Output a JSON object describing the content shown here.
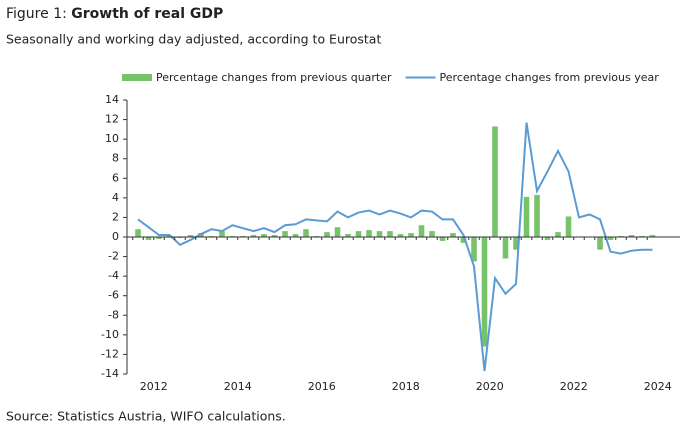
{
  "chart_data": {
    "type": "bar+line",
    "title_prefix": "Figure 1:",
    "title": "Growth of real GDP",
    "subtitle": "Seasonally and working day adjusted, according to Eurostat",
    "source": "Source: Statistics Austria, WIFO calculations.",
    "categories": [
      "2012",
      null,
      null,
      null,
      null,
      null,
      null,
      null,
      "2014",
      null,
      null,
      null,
      null,
      null,
      null,
      null,
      "2016",
      null,
      null,
      null,
      null,
      null,
      null,
      null,
      "2018",
      null,
      null,
      null,
      null,
      null,
      null,
      null,
      "2020",
      null,
      null,
      null,
      null,
      null,
      null,
      null,
      "2022",
      null,
      null,
      null,
      null,
      null,
      null,
      null,
      "2024",
      null
    ],
    "series": [
      {
        "name": "Percentage changes from previous quarter",
        "type": "bar",
        "color": "#77c36a",
        "values": [
          0.8,
          -0.3,
          -0.2,
          0.1,
          -0.1,
          0.2,
          0.4,
          0.1,
          0.6,
          0.1,
          0.1,
          0.2,
          0.3,
          0.2,
          0.6,
          0.3,
          0.8,
          0.1,
          0.5,
          1.0,
          0.3,
          0.6,
          0.7,
          0.6,
          0.6,
          0.3,
          0.4,
          1.2,
          0.6,
          -0.4,
          0.4,
          -0.6,
          -2.5,
          -11.2,
          11.3,
          -2.2,
          -1.3,
          4.1,
          4.3,
          -0.3,
          0.5,
          2.1,
          0.0,
          0.0,
          -1.3,
          -0.3,
          0.1,
          0.2,
          0.1,
          0.2
        ]
      },
      {
        "name": "Percentage changes from previous year",
        "type": "line",
        "color": "#5b9bd5",
        "values": [
          1.8,
          1.0,
          0.2,
          0.2,
          -0.8,
          -0.3,
          0.3,
          0.8,
          0.6,
          1.2,
          0.9,
          0.6,
          0.9,
          0.5,
          1.2,
          1.3,
          1.8,
          1.7,
          1.6,
          2.6,
          2.0,
          2.5,
          2.7,
          2.3,
          2.7,
          2.4,
          2.0,
          2.7,
          2.6,
          1.8,
          1.8,
          0.2,
          -3.0,
          -13.7,
          -4.2,
          -5.8,
          -4.8,
          11.7,
          4.7,
          6.7,
          8.8,
          6.7,
          2.0,
          2.3,
          1.8,
          -1.5,
          -1.7,
          -1.4,
          -1.3,
          -1.3
        ]
      }
    ],
    "ylim": [
      -14,
      14
    ],
    "yticks": [
      -14,
      -12,
      -10,
      -8,
      -6,
      -4,
      -2,
      0,
      2,
      4,
      6,
      8,
      10,
      12,
      14
    ],
    "legend": "top"
  }
}
